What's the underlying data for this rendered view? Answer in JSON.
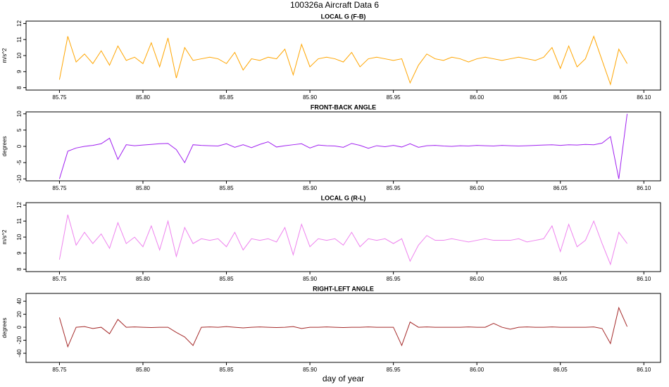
{
  "title": "100326a    Aircraft Data 6",
  "chart_data": [
    {
      "type": "line",
      "title": "LOCAL G (F-B)",
      "ylabel": "m/s^2",
      "color": "#FFA500",
      "x": [
        85.75,
        85.755,
        85.76,
        85.765,
        85.77,
        85.775,
        85.78,
        85.785,
        85.79,
        85.795,
        85.8,
        85.805,
        85.81,
        85.815,
        85.82,
        85.825,
        85.83,
        85.835,
        85.84,
        85.845,
        85.85,
        85.855,
        85.86,
        85.865,
        85.87,
        85.875,
        85.88,
        85.885,
        85.89,
        85.895,
        85.9,
        85.905,
        85.91,
        85.915,
        85.92,
        85.925,
        85.93,
        85.935,
        85.94,
        85.945,
        85.95,
        85.955,
        85.96,
        85.965,
        85.97,
        85.975,
        85.98,
        85.985,
        85.99,
        85.995,
        86,
        86.005,
        86.01,
        86.015,
        86.02,
        86.025,
        86.03,
        86.035,
        86.04,
        86.045,
        86.05,
        86.055,
        86.06,
        86.065,
        86.07,
        86.075,
        86.08,
        86.085,
        86.09
      ],
      "values": [
        8.5,
        11.2,
        9.6,
        10.1,
        9.5,
        10.3,
        9.4,
        10.6,
        9.7,
        9.9,
        9.5,
        10.8,
        9.3,
        11.1,
        8.6,
        10.5,
        9.7,
        9.8,
        9.9,
        9.8,
        9.5,
        10.2,
        9.1,
        9.8,
        9.7,
        9.9,
        9.8,
        10.4,
        8.8,
        10.7,
        9.3,
        9.8,
        9.9,
        9.8,
        9.6,
        10.2,
        9.3,
        9.8,
        9.9,
        9.8,
        9.7,
        9.8,
        8.3,
        9.4,
        10.1,
        9.8,
        9.7,
        9.9,
        9.8,
        9.6,
        9.8,
        9.9,
        9.8,
        9.7,
        9.8,
        9.9,
        9.8,
        9.7,
        9.9,
        10.5,
        9.2,
        10.6,
        9.3,
        9.8,
        11.2,
        9.7,
        8.2,
        10.4,
        9.5
      ],
      "xlim": [
        85.73,
        86.11
      ],
      "xticks": [
        85.75,
        {
          "value": 85.8,
          "label": "85.80"
        },
        85.85,
        {
          "value": 85.9,
          "label": "85.90"
        },
        85.95,
        {
          "value": 86,
          "label": "86.00"
        },
        86.05,
        {
          "value": 86.1,
          "label": "86.10"
        }
      ],
      "ylim": [
        7.85,
        12.15
      ],
      "yticks": [
        8,
        9,
        10,
        11,
        12
      ]
    },
    {
      "type": "line",
      "title": "FRONT-BACK ANGLE",
      "ylabel": "degrees",
      "color": "#A020F0",
      "x": [
        85.75,
        85.755,
        85.76,
        85.765,
        85.77,
        85.775,
        85.78,
        85.785,
        85.79,
        85.795,
        85.8,
        85.805,
        85.81,
        85.815,
        85.82,
        85.825,
        85.83,
        85.835,
        85.84,
        85.845,
        85.85,
        85.855,
        85.86,
        85.865,
        85.87,
        85.875,
        85.88,
        85.885,
        85.89,
        85.895,
        85.9,
        85.905,
        85.91,
        85.915,
        85.92,
        85.925,
        85.93,
        85.935,
        85.94,
        85.945,
        85.95,
        85.955,
        85.96,
        85.965,
        85.97,
        85.975,
        85.98,
        85.985,
        85.99,
        85.995,
        86,
        86.005,
        86.01,
        86.015,
        86.02,
        86.025,
        86.03,
        86.035,
        86.04,
        86.045,
        86.05,
        86.055,
        86.06,
        86.065,
        86.07,
        86.075,
        86.08,
        86.085,
        86.09
      ],
      "values": [
        -10,
        -1.5,
        -0.5,
        0,
        0.3,
        0.8,
        2.5,
        -4,
        0.5,
        0.2,
        0.4,
        0.6,
        0.8,
        0.9,
        -1,
        -5,
        0.5,
        0.3,
        0.2,
        0.1,
        0.8,
        -0.3,
        0.5,
        -0.4,
        0.6,
        1.4,
        -0.2,
        0.2,
        0.5,
        0.8,
        -0.5,
        0.4,
        0.2,
        0.1,
        -0.3,
        0.9,
        0.3,
        -0.6,
        0.2,
        -0.1,
        0.3,
        -0.2,
        0.8,
        -0.3,
        0.2,
        0.3,
        0.1,
        0,
        0.2,
        0.1,
        0.3,
        0.2,
        0.1,
        0.3,
        0.2,
        0.1,
        0.2,
        0.3,
        0.4,
        0.5,
        0.3,
        0.5,
        0.4,
        0.6,
        0.5,
        1,
        3,
        -10,
        10
      ],
      "xlim": [
        85.73,
        86.11
      ],
      "xticks": [
        85.75,
        {
          "value": 85.8,
          "label": "85.80"
        },
        85.85,
        {
          "value": 85.9,
          "label": "85.90"
        },
        85.95,
        {
          "value": 86,
          "label": "86.00"
        },
        86.05,
        {
          "value": 86.1,
          "label": "86.10"
        }
      ],
      "ylim": [
        -10.6,
        10.6
      ],
      "yticks": [
        -10,
        -5,
        0,
        5,
        10
      ]
    },
    {
      "type": "line",
      "title": "LOCAL G (R-L)",
      "ylabel": "m/s^2",
      "color": "#EE82EE",
      "x": [
        85.75,
        85.755,
        85.76,
        85.765,
        85.77,
        85.775,
        85.78,
        85.785,
        85.79,
        85.795,
        85.8,
        85.805,
        85.81,
        85.815,
        85.82,
        85.825,
        85.83,
        85.835,
        85.84,
        85.845,
        85.85,
        85.855,
        85.86,
        85.865,
        85.87,
        85.875,
        85.88,
        85.885,
        85.89,
        85.895,
        85.9,
        85.905,
        85.91,
        85.915,
        85.92,
        85.925,
        85.93,
        85.935,
        85.94,
        85.945,
        85.95,
        85.955,
        85.96,
        85.965,
        85.97,
        85.975,
        85.98,
        85.985,
        85.99,
        85.995,
        86,
        86.005,
        86.01,
        86.015,
        86.02,
        86.025,
        86.03,
        86.035,
        86.04,
        86.045,
        86.05,
        86.055,
        86.06,
        86.065,
        86.07,
        86.075,
        86.08,
        86.085,
        86.09
      ],
      "values": [
        8.6,
        11.4,
        9.5,
        10.3,
        9.6,
        10.2,
        9.3,
        10.9,
        9.6,
        10.0,
        9.4,
        10.7,
        9.2,
        11.0,
        8.8,
        10.6,
        9.6,
        9.9,
        9.8,
        9.9,
        9.4,
        10.3,
        9.2,
        9.9,
        9.8,
        9.9,
        9.7,
        10.6,
        8.9,
        10.8,
        9.4,
        9.9,
        9.8,
        9.9,
        9.5,
        10.3,
        9.4,
        9.9,
        9.8,
        9.9,
        9.6,
        9.9,
        8.5,
        9.5,
        10.1,
        9.8,
        9.8,
        9.9,
        9.8,
        9.7,
        9.8,
        9.9,
        9.8,
        9.8,
        9.8,
        9.9,
        9.7,
        9.8,
        9.9,
        10.7,
        9.1,
        10.8,
        9.4,
        9.8,
        11.0,
        9.6,
        8.3,
        10.3,
        9.6
      ],
      "xlim": [
        85.73,
        86.11
      ],
      "xticks": [
        85.75,
        {
          "value": 85.8,
          "label": "85.80"
        },
        85.85,
        {
          "value": 85.9,
          "label": "85.90"
        },
        85.95,
        {
          "value": 86,
          "label": "86.00"
        },
        86.05,
        {
          "value": 86.1,
          "label": "86.10"
        }
      ],
      "ylim": [
        7.85,
        12.15
      ],
      "yticks": [
        8,
        9,
        10,
        11,
        12
      ]
    },
    {
      "type": "line",
      "title": "RIGHT-LEFT ANGLE",
      "ylabel": "degrees",
      "xlabel": "day of year",
      "color": "#A52A2A",
      "x": [
        85.75,
        85.755,
        85.76,
        85.765,
        85.77,
        85.775,
        85.78,
        85.785,
        85.79,
        85.795,
        85.8,
        85.805,
        85.81,
        85.815,
        85.82,
        85.825,
        85.83,
        85.835,
        85.84,
        85.845,
        85.85,
        85.855,
        85.86,
        85.865,
        85.87,
        85.875,
        85.88,
        85.885,
        85.89,
        85.895,
        85.9,
        85.905,
        85.91,
        85.915,
        85.92,
        85.925,
        85.93,
        85.935,
        85.94,
        85.945,
        85.95,
        85.955,
        85.96,
        85.965,
        85.97,
        85.975,
        85.98,
        85.985,
        85.99,
        85.995,
        86,
        86.005,
        86.01,
        86.015,
        86.02,
        86.025,
        86.03,
        86.035,
        86.04,
        86.045,
        86.05,
        86.055,
        86.06,
        86.065,
        86.07,
        86.075,
        86.08,
        86.085,
        86.09
      ],
      "values": [
        15,
        -30,
        0,
        1,
        -2,
        0,
        -10,
        12,
        0,
        0.5,
        0,
        -0.5,
        0,
        0,
        -8,
        -15,
        -28,
        0,
        0.5,
        0,
        1,
        0,
        -1,
        0,
        0.5,
        0,
        -0.5,
        0,
        1,
        -2,
        0,
        0,
        0.5,
        0,
        -0.5,
        0,
        0,
        0.5,
        0,
        0,
        0,
        -28,
        8,
        0,
        0.5,
        0,
        0,
        0,
        0,
        0.5,
        0,
        0,
        6,
        0,
        -3,
        0,
        0.5,
        0,
        0,
        0.5,
        0,
        0,
        0,
        0,
        0.5,
        -2,
        -25,
        30,
        1
      ],
      "xlim": [
        85.73,
        86.11
      ],
      "xticks": [
        85.75,
        {
          "value": 85.8,
          "label": "85.80"
        },
        85.85,
        {
          "value": 85.9,
          "label": "85.90"
        },
        85.95,
        {
          "value": 86,
          "label": "86.00"
        },
        86.05,
        {
          "value": 86.1,
          "label": "86.10"
        }
      ],
      "ylim": [
        -54,
        52
      ],
      "yticks": [
        -40,
        -20,
        0,
        20,
        40
      ]
    }
  ]
}
